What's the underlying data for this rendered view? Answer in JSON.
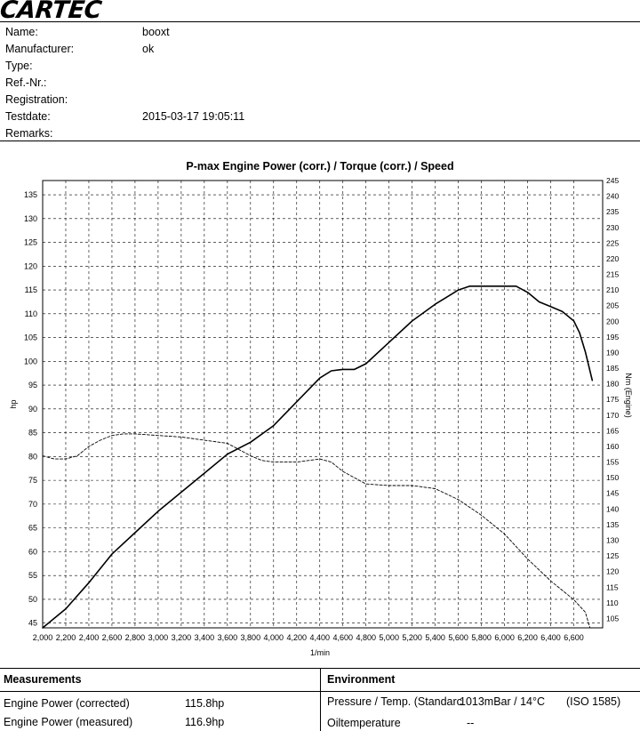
{
  "brand": "CARTEC",
  "info": [
    {
      "label": "Name:",
      "value": "booxt"
    },
    {
      "label": "Manufacturer:",
      "value": "ok"
    },
    {
      "label": "Type:",
      "value": ""
    },
    {
      "label": "Ref.-Nr.:",
      "value": ""
    },
    {
      "label": "Registration:",
      "value": ""
    },
    {
      "label": "Testdate:",
      "value": "2015-03-17 19:05:11"
    },
    {
      "label": "Remarks:",
      "value": ""
    }
  ],
  "chart_data": {
    "type": "line",
    "title": "P-max Engine Power (corr.) / Torque (corr.) / Speed",
    "xlabel": "1/min",
    "ylabel_left": "hp",
    "ylabel_right": "Nm (Engine)",
    "xlim": [
      2000,
      6850
    ],
    "ylim_left": [
      44,
      138
    ],
    "ylim_right": [
      102,
      245
    ],
    "xticks": [
      2000,
      2200,
      2400,
      2600,
      2800,
      3000,
      3200,
      3400,
      3600,
      3800,
      4000,
      4200,
      4400,
      4600,
      4800,
      5000,
      5200,
      5400,
      5600,
      5800,
      6000,
      6200,
      6400,
      6600
    ],
    "xtick_labels": [
      "2,000",
      "2,200",
      "2,400",
      "2,600",
      "2,800",
      "3,000",
      "3,200",
      "3,400",
      "3,600",
      "3,800",
      "4,000",
      "4,200",
      "4,400",
      "4,600",
      "4,800",
      "5,000",
      "5,200",
      "5,400",
      "5,600",
      "5,800",
      "6,000",
      "6,200",
      "6,400",
      "6,600"
    ],
    "yticks_left": [
      45,
      50,
      55,
      60,
      65,
      70,
      75,
      80,
      85,
      90,
      95,
      100,
      105,
      110,
      115,
      120,
      125,
      130,
      135
    ],
    "yticks_right": [
      105,
      110,
      115,
      120,
      125,
      130,
      135,
      140,
      145,
      150,
      155,
      160,
      165,
      170,
      175,
      180,
      185,
      190,
      195,
      200,
      205,
      210,
      215,
      220,
      225,
      230,
      235,
      240,
      245
    ],
    "grid": true,
    "series": [
      {
        "name": "",
        "axis": "left",
        "style": "solid",
        "color": "#000000",
        "x": [
          2000,
          2200,
          2400,
          2600,
          2800,
          3000,
          3200,
          3400,
          3600,
          3800,
          4000,
          4200,
          4400,
          4500,
          4600,
          4700,
          4800,
          5000,
          5200,
          5400,
          5600,
          5700,
          5800,
          5900,
          6000,
          6100,
          6200,
          6300,
          6400,
          6500,
          6600,
          6650,
          6700,
          6760
        ],
        "y": [
          44,
          48,
          53.5,
          59.5,
          64,
          68.5,
          72.5,
          76.5,
          80.5,
          83,
          86.5,
          91.5,
          96.5,
          98,
          98.3,
          98.3,
          99.5,
          104,
          108.5,
          112,
          115,
          115.8,
          115.8,
          115.8,
          115.8,
          115.8,
          114.5,
          112.5,
          111.5,
          110.5,
          108.5,
          106,
          102,
          96
        ]
      },
      {
        "name": "",
        "axis": "right",
        "style": "dashed",
        "color": "#000000",
        "x": [
          2000,
          2100,
          2200,
          2300,
          2400,
          2500,
          2600,
          2700,
          2800,
          3000,
          3200,
          3400,
          3600,
          3800,
          3900,
          4000,
          4200,
          4400,
          4500,
          4600,
          4800,
          5000,
          5200,
          5400,
          5600,
          5800,
          6000,
          6200,
          6400,
          6600,
          6650,
          6700,
          6740
        ],
        "y": [
          157,
          156,
          156,
          157,
          160,
          162,
          163.5,
          164,
          164,
          163.5,
          163,
          162,
          161,
          157,
          155.5,
          155,
          155,
          156,
          155,
          152,
          148,
          147.5,
          147.5,
          146.5,
          143,
          138,
          132,
          124,
          117,
          111,
          109,
          107,
          102
        ]
      }
    ]
  },
  "measurements": {
    "heading": "Measurements",
    "rows": [
      {
        "label": "Engine Power (corrected)",
        "value": "115.8hp"
      },
      {
        "label": "Engine Power (measured)",
        "value": "116.9hp"
      }
    ]
  },
  "environment": {
    "heading": "Environment",
    "rows": [
      {
        "label": "Pressure / Temp. (Standarc",
        "value": "1013mBar / 14°C",
        "extra": "(ISO 1585)"
      },
      {
        "label": "Oiltemperature",
        "value": "--",
        "extra": ""
      }
    ]
  }
}
